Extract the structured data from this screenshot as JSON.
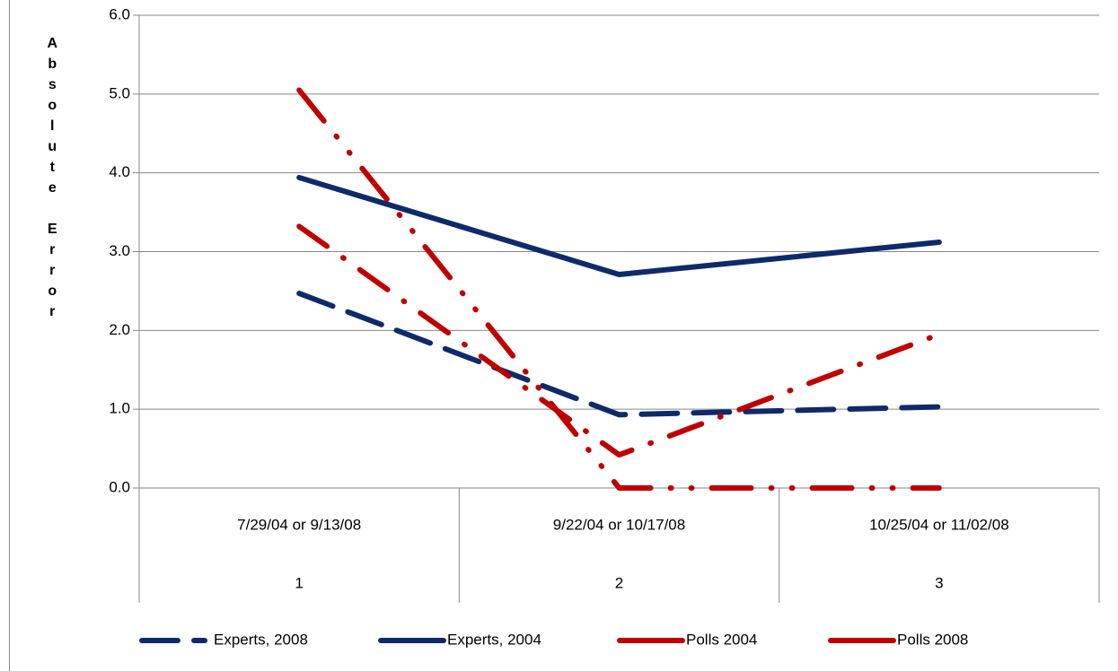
{
  "chart_data": {
    "type": "line",
    "y_label": "Absolute Error",
    "categories": [
      "7/29/04 or 9/13/08",
      "9/22/04 or 10/17/08",
      "10/25/04 or  11/02/08"
    ],
    "category_numbers": [
      "1",
      "2",
      "3"
    ],
    "series": [
      {
        "name": "Experts, 2008",
        "color": "#0e2a6b",
        "dash": "dash",
        "values": [
          2.47,
          0.93,
          1.03
        ]
      },
      {
        "name": "Experts, 2004",
        "color": "#0e2a6b",
        "dash": "solid",
        "values": [
          3.94,
          2.71,
          3.12
        ]
      },
      {
        "name": "Polls 2004",
        "color": "#c00000",
        "dash": "dashdot",
        "values": [
          3.32,
          0.42,
          1.95
        ]
      },
      {
        "name": "Polls 2008",
        "color": "#c00000",
        "dash": "dashdotdot",
        "values": [
          5.05,
          0.0,
          0.0
        ]
      }
    ],
    "ylim": [
      0,
      6
    ],
    "yticks": [
      {
        "value": 0,
        "label": "0.0"
      },
      {
        "value": 1,
        "label": "1.0"
      },
      {
        "value": 2,
        "label": "2.0"
      },
      {
        "value": 3,
        "label": "3.0"
      },
      {
        "value": 4,
        "label": "4.0"
      },
      {
        "value": 5,
        "label": "5.0"
      },
      {
        "value": 6,
        "label": "6.0"
      }
    ],
    "grid": true,
    "legend": "bottom"
  }
}
